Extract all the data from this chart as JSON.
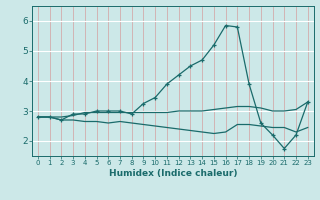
{
  "x": [
    0,
    1,
    2,
    3,
    4,
    5,
    6,
    7,
    8,
    9,
    10,
    11,
    12,
    13,
    14,
    15,
    16,
    17,
    18,
    19,
    20,
    21,
    22,
    23
  ],
  "line_max": [
    2.8,
    2.8,
    2.7,
    2.9,
    2.9,
    3.0,
    3.0,
    3.0,
    2.9,
    3.25,
    3.45,
    3.9,
    4.2,
    4.5,
    4.7,
    5.2,
    5.85,
    5.8,
    3.9,
    2.6,
    2.2,
    1.75,
    2.2,
    3.3
  ],
  "line_mean": [
    2.8,
    2.8,
    2.8,
    2.85,
    2.95,
    2.95,
    2.95,
    2.95,
    2.95,
    2.95,
    2.95,
    2.95,
    3.0,
    3.0,
    3.0,
    3.05,
    3.1,
    3.15,
    3.15,
    3.1,
    3.0,
    3.0,
    3.05,
    3.3
  ],
  "line_min": [
    2.8,
    2.8,
    2.7,
    2.7,
    2.65,
    2.65,
    2.6,
    2.65,
    2.6,
    2.55,
    2.5,
    2.45,
    2.4,
    2.35,
    2.3,
    2.25,
    2.3,
    2.55,
    2.55,
    2.5,
    2.45,
    2.45,
    2.3,
    2.45
  ],
  "bg_color": "#cce8e8",
  "line_color": "#1a6b6b",
  "grid_white": "#ffffff",
  "grid_pink": "#d4a0a0",
  "xlabel": "Humidex (Indice chaleur)",
  "ylim": [
    1.5,
    6.5
  ],
  "xlim": [
    -0.5,
    23.5
  ],
  "yticks": [
    2,
    3,
    4,
    5,
    6
  ],
  "xticks": [
    0,
    1,
    2,
    3,
    4,
    5,
    6,
    7,
    8,
    9,
    10,
    11,
    12,
    13,
    14,
    15,
    16,
    17,
    18,
    19,
    20,
    21,
    22,
    23
  ]
}
